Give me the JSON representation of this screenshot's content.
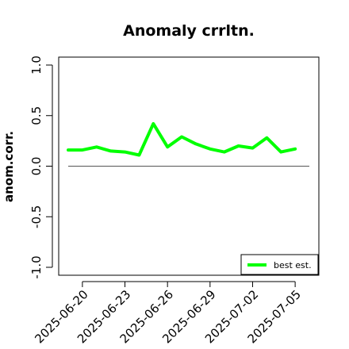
{
  "chart_data": {
    "type": "line",
    "title": "Anomaly crrltn.",
    "xlabel": "",
    "ylabel": "anom.corr.",
    "ylim": [
      -1.0,
      1.0
    ],
    "yticks": [
      "-1.0",
      "-0.5",
      "0.0",
      "0.5",
      "1.0"
    ],
    "ytick_values": [
      -1.0,
      -0.5,
      0.0,
      0.5,
      1.0
    ],
    "xticks": [
      "2025-06-20",
      "2025-06-23",
      "2025-06-26",
      "2025-06-29",
      "2025-07-02",
      "2025-07-05"
    ],
    "highlight_tick": "2025-06-26",
    "highlight_color": "#228b22",
    "x": [
      "2025-06-19",
      "2025-06-20",
      "2025-06-21",
      "2025-06-22",
      "2025-06-23",
      "2025-06-24",
      "2025-06-25",
      "2025-06-26",
      "2025-06-27",
      "2025-06-28",
      "2025-06-29",
      "2025-06-30",
      "2025-07-01",
      "2025-07-02",
      "2025-07-03",
      "2025-07-04",
      "2025-07-05"
    ],
    "series": [
      {
        "name": "best est.",
        "color": "#00ff00",
        "values": [
          0.16,
          0.16,
          0.19,
          0.15,
          0.14,
          0.11,
          0.42,
          0.19,
          0.29,
          0.22,
          0.17,
          0.14,
          0.2,
          0.18,
          0.28,
          0.14,
          0.17
        ]
      }
    ],
    "reference_line": 0.0,
    "grid": false,
    "legend_position": "bottom-right"
  }
}
